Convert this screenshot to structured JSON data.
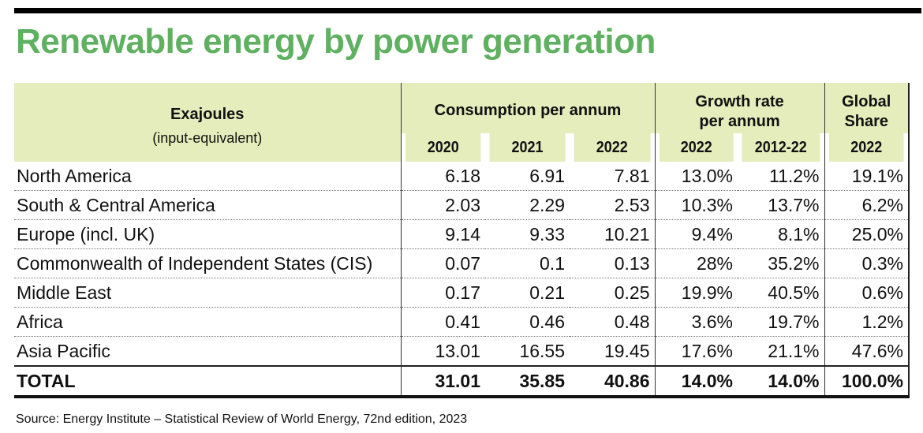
{
  "title": "Renewable energy by power generation",
  "header": {
    "unit": "Exajoules",
    "unit_note": "(input-equivalent)",
    "group_consumption": "Consumption per annum",
    "group_growth": "Growth rate per annum",
    "group_share": "Global Share",
    "years": [
      "2020",
      "2021",
      "2022",
      "2022",
      "2012-22",
      "2022"
    ]
  },
  "rows": [
    {
      "region": "North America",
      "values": [
        "6.18",
        "6.91",
        "7.81",
        "13.0%",
        "11.2%",
        "19.1%"
      ]
    },
    {
      "region": "South & Central America",
      "values": [
        "2.03",
        "2.29",
        "2.53",
        "10.3%",
        "13.7%",
        "6.2%"
      ]
    },
    {
      "region": "Europe (incl. UK)",
      "values": [
        "9.14",
        "9.33",
        "10.21",
        "9.4%",
        "8.1%",
        "25.0%"
      ]
    },
    {
      "region": "Commonwealth of Independent States (CIS)",
      "values": [
        "0.07",
        "0.1",
        "0.13",
        "28%",
        "35.2%",
        "0.3%"
      ]
    },
    {
      "region": "Middle East",
      "values": [
        "0.17",
        "0.21",
        "0.25",
        "19.9%",
        "40.5%",
        "0.6%"
      ]
    },
    {
      "region": "Africa",
      "values": [
        "0.41",
        "0.46",
        "0.48",
        "3.6%",
        "19.7%",
        "1.2%"
      ]
    },
    {
      "region": "Asia Pacific",
      "values": [
        "13.01",
        "16.55",
        "19.45",
        "17.6%",
        "21.1%",
        "47.6%"
      ]
    }
  ],
  "total": {
    "region": "TOTAL",
    "values": [
      "31.01",
      "35.85",
      "40.86",
      "14.0%",
      "14.0%",
      "100.0%"
    ]
  },
  "source": "Source: Energy Institute – Statistical Review of World Energy, 72nd edition, 2023",
  "colors": {
    "title": "#5fb060",
    "header_bg": "#e5edbc"
  },
  "chart_data": {
    "type": "table",
    "title": "Renewable energy by power generation",
    "columns": [
      "Consumption 2020 (EJ)",
      "Consumption 2021 (EJ)",
      "Consumption 2022 (EJ)",
      "Growth 2022 (%)",
      "Growth 2012-22 (%)",
      "Global Share 2022 (%)"
    ],
    "rows": [
      "North America",
      "South & Central America",
      "Europe (incl. UK)",
      "Commonwealth of Independent States (CIS)",
      "Middle East",
      "Africa",
      "Asia Pacific",
      "TOTAL"
    ],
    "values": [
      [
        6.18,
        6.91,
        7.81,
        13.0,
        11.2,
        19.1
      ],
      [
        2.03,
        2.29,
        2.53,
        10.3,
        13.7,
        6.2
      ],
      [
        9.14,
        9.33,
        10.21,
        9.4,
        8.1,
        25.0
      ],
      [
        0.07,
        0.1,
        0.13,
        28,
        35.2,
        0.3
      ],
      [
        0.17,
        0.21,
        0.25,
        19.9,
        40.5,
        0.6
      ],
      [
        0.41,
        0.46,
        0.48,
        3.6,
        19.7,
        1.2
      ],
      [
        13.01,
        16.55,
        19.45,
        17.6,
        21.1,
        47.6
      ],
      [
        31.01,
        35.85,
        40.86,
        14.0,
        14.0,
        100.0
      ]
    ]
  }
}
